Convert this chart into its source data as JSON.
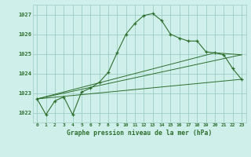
{
  "bg_color": "#cff0ea",
  "grid_color": "#9ecdc7",
  "line_color": "#2d6e2d",
  "title": "Graphe pression niveau de la mer (hPa)",
  "title_color": "#2d6e2d",
  "xlim": [
    -0.5,
    23.5
  ],
  "ylim": [
    1021.5,
    1027.5
  ],
  "yticks": [
    1022,
    1023,
    1024,
    1025,
    1026,
    1027
  ],
  "xtick_labels": [
    "0",
    "1",
    "2",
    "3",
    "4",
    "5",
    "6",
    "7",
    "8",
    "9",
    "10",
    "11",
    "12",
    "13",
    "14",
    "15",
    "16",
    "17",
    "18",
    "19",
    "20",
    "21",
    "22",
    "23"
  ],
  "series1_x": [
    0,
    1,
    2,
    3,
    4,
    5,
    6,
    7,
    8,
    9,
    10,
    11,
    12,
    13,
    14,
    15,
    16,
    17,
    18,
    19,
    20,
    21,
    22,
    23
  ],
  "series1_y": [
    1022.7,
    1021.9,
    1022.6,
    1022.8,
    1021.9,
    1023.05,
    1023.25,
    1023.55,
    1024.05,
    1025.05,
    1026.0,
    1026.55,
    1026.95,
    1027.05,
    1026.7,
    1026.0,
    1025.8,
    1025.65,
    1025.65,
    1025.1,
    1025.05,
    1024.95,
    1024.25,
    1023.7
  ],
  "line2_x": [
    0,
    23
  ],
  "line2_y": [
    1022.7,
    1023.7
  ],
  "line3_x": [
    0,
    20,
    23
  ],
  "line3_y": [
    1022.7,
    1025.05,
    1024.95
  ],
  "line4_x": [
    0,
    23
  ],
  "line4_y": [
    1022.7,
    1024.95
  ]
}
